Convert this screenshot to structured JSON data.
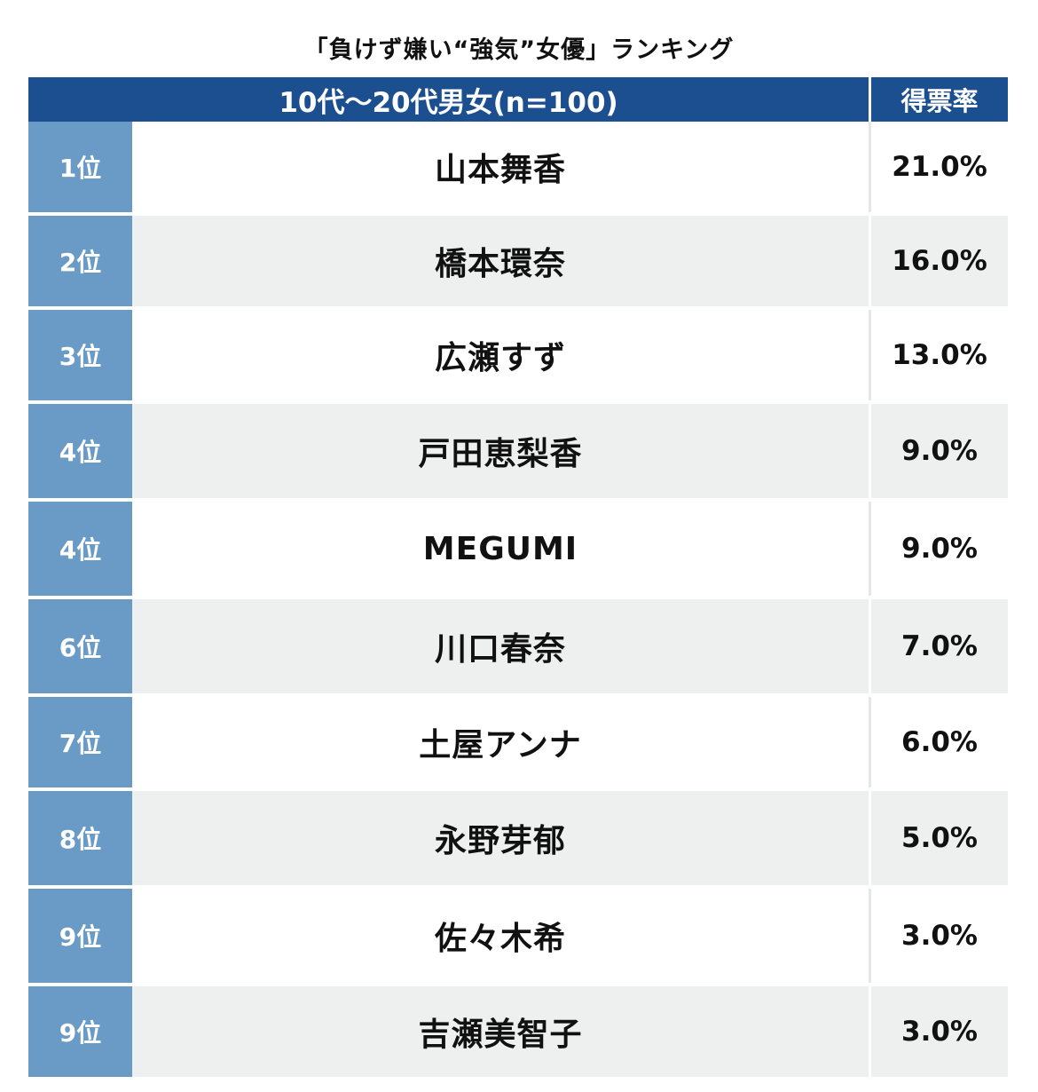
{
  "title": "「負けず嫌い“強気”女優」ランキング",
  "header": {
    "group": "10代〜20代男女(n=100)",
    "vote_rate": "得票率"
  },
  "colors": {
    "header_bg": "#1b4f8f",
    "rank_bg": "#6a9bc6",
    "alt_row_bg": "#eef0f0"
  },
  "chart_data": {
    "type": "table",
    "title": "「負けず嫌い“強気”女優」ランキング",
    "columns": [
      "",
      "10代〜20代男女(n=100)",
      "得票率"
    ],
    "rows": [
      {
        "rank": "1位",
        "name": "山本舞香",
        "pct": "21.0%",
        "value": 21.0
      },
      {
        "rank": "2位",
        "name": "橋本環奈",
        "pct": "16.0%",
        "value": 16.0
      },
      {
        "rank": "3位",
        "name": "広瀬すず",
        "pct": "13.0%",
        "value": 13.0
      },
      {
        "rank": "4位",
        "name": "戸田恵梨香",
        "pct": "9.0%",
        "value": 9.0
      },
      {
        "rank": "4位",
        "name": "MEGUMI",
        "pct": "9.0%",
        "value": 9.0
      },
      {
        "rank": "6位",
        "name": "川口春奈",
        "pct": "7.0%",
        "value": 7.0
      },
      {
        "rank": "7位",
        "name": "土屋アンナ",
        "pct": "6.0%",
        "value": 6.0
      },
      {
        "rank": "8位",
        "name": "永野芽郁",
        "pct": "5.0%",
        "value": 5.0
      },
      {
        "rank": "9位",
        "name": "佐々木希",
        "pct": "3.0%",
        "value": 3.0
      },
      {
        "rank": "9位",
        "name": "吉瀬美智子",
        "pct": "3.0%",
        "value": 3.0
      }
    ]
  }
}
